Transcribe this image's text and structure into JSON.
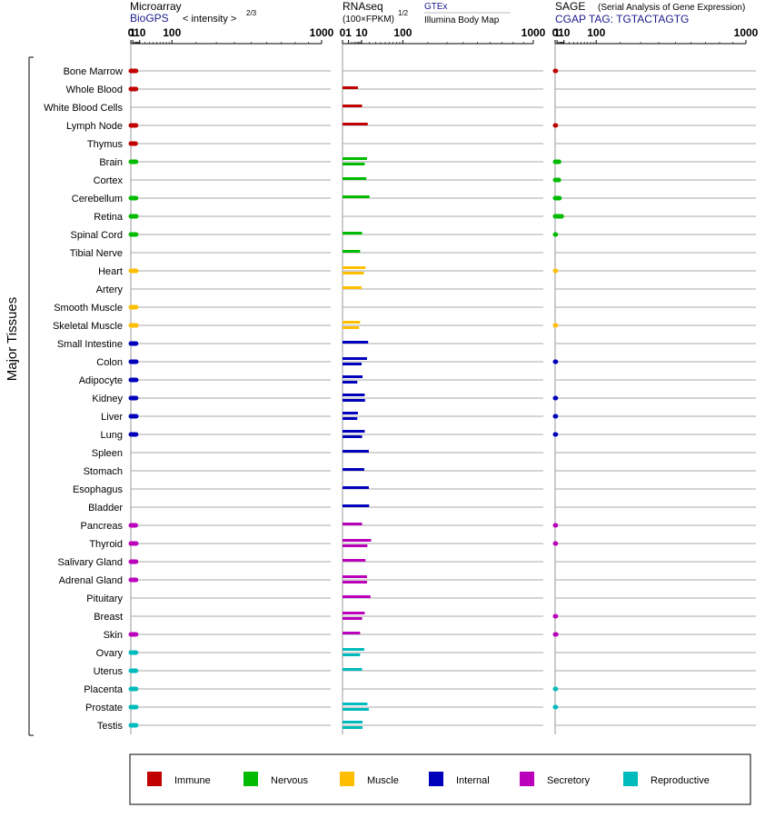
{
  "chart_data": {
    "type": "bar",
    "y_title": "Major Tissues",
    "panels": [
      {
        "id": "microarray",
        "title": "Microarray",
        "source": "BioGPS",
        "scale_label": "< intensity >",
        "scale_exponent": "2/3",
        "ticks": [
          "0",
          "1",
          "10",
          "100",
          "1000"
        ]
      },
      {
        "id": "rnaseq",
        "title": "RNAseq",
        "scale_label": "(100×FPKM)",
        "scale_exponent": "1/2",
        "source": "GTEx",
        "source2": "Illumina Body Map",
        "ticks": [
          "0",
          "1",
          "10",
          "100",
          "1000"
        ]
      },
      {
        "id": "sage",
        "title": "SAGE",
        "subtitle": "(Serial Analysis of Gene Expression)",
        "source": "CGAP TAG: TGTACTAGTG",
        "ticks": [
          "0",
          "1",
          "10",
          "100",
          "1000"
        ]
      }
    ],
    "tissues": [
      {
        "name": "Bone Marrow",
        "group": "Immune",
        "micro": 4.5,
        "rna": [],
        "sage": 0.05
      },
      {
        "name": "Whole Blood",
        "group": "Immune",
        "micro": 4.5,
        "rna": [
          6.5
        ],
        "sage": null
      },
      {
        "name": "White Blood Cells",
        "group": "Immune",
        "micro": null,
        "rna": [
          10.5
        ],
        "sage": null
      },
      {
        "name": "Lymph Node",
        "group": "Immune",
        "micro": 4.5,
        "rna": [
          17.5
        ],
        "sage": 0.05
      },
      {
        "name": "Thymus",
        "group": "Immune",
        "micro": 4.0,
        "rna": [],
        "sage": null
      },
      {
        "name": "Brain",
        "group": "Nervous",
        "micro": 4.5,
        "rna": [
          16.5,
          13.5
        ],
        "sage": 3.0
      },
      {
        "name": "Cortex",
        "group": "Nervous",
        "micro": null,
        "rna": [
          15.5
        ],
        "sage": 2.8
      },
      {
        "name": "Cerebellum",
        "group": "Nervous",
        "micro": 4.5,
        "rna": [
          20.0
        ],
        "sage": 3.5
      },
      {
        "name": "Retina",
        "group": "Nervous",
        "micro": 4.8,
        "rna": [],
        "sage": 6.5
      },
      {
        "name": "Spinal Cord",
        "group": "Nervous",
        "micro": 4.6,
        "rna": [
          10.5
        ],
        "sage": 0.05
      },
      {
        "name": "Tibial Nerve",
        "group": "Nervous",
        "micro": null,
        "rna": [
          8.5
        ],
        "sage": null
      },
      {
        "name": "Heart",
        "group": "Muscle",
        "micro": 4.8,
        "rna": [
          14.5,
          12.5
        ],
        "sage": 0.03
      },
      {
        "name": "Artery",
        "group": "Muscle",
        "micro": null,
        "rna": [
          10.0
        ],
        "sage": null
      },
      {
        "name": "Smooth Muscle",
        "group": "Muscle",
        "micro": 4.8,
        "rna": [],
        "sage": null
      },
      {
        "name": "Skeletal Muscle",
        "group": "Muscle",
        "micro": 5.0,
        "rna": [
          8.5,
          7.5
        ],
        "sage": 0.03
      },
      {
        "name": "Small Intestine",
        "group": "Internal",
        "micro": 4.6,
        "rna": [
          18.0
        ],
        "sage": null
      },
      {
        "name": "Colon",
        "group": "Internal",
        "micro": 4.8,
        "rna": [
          16.5,
          10.0
        ],
        "sage": 0.05
      },
      {
        "name": "Adipocyte",
        "group": "Internal",
        "micro": 4.8,
        "rna": [
          11.0,
          6.0
        ],
        "sage": null
      },
      {
        "name": "Kidney",
        "group": "Internal",
        "micro": 4.6,
        "rna": [
          13.5,
          14.0
        ],
        "sage": 0.05
      },
      {
        "name": "Liver",
        "group": "Internal",
        "micro": 4.8,
        "rna": [
          6.5,
          6.0
        ],
        "sage": 0.05
      },
      {
        "name": "Lung",
        "group": "Internal",
        "micro": 4.6,
        "rna": [
          13.5,
          10.5
        ],
        "sage": 0.05
      },
      {
        "name": "Spleen",
        "group": "Internal",
        "micro": null,
        "rna": [
          19.0
        ],
        "sage": null
      },
      {
        "name": "Stomach",
        "group": "Internal",
        "micro": null,
        "rna": [
          13.0
        ],
        "sage": null
      },
      {
        "name": "Esophagus",
        "group": "Internal",
        "micro": null,
        "rna": [
          19.0
        ],
        "sage": null
      },
      {
        "name": "Bladder",
        "group": "Internal",
        "micro": null,
        "rna": [
          19.5
        ],
        "sage": null
      },
      {
        "name": "Pancreas",
        "group": "Secretory",
        "micro": 4.2,
        "rna": [
          10.5
        ],
        "sage": 0.05
      },
      {
        "name": "Thyroid",
        "group": "Secretory",
        "micro": 4.8,
        "rna": [
          22.5,
          17.0
        ],
        "sage": 0.05
      },
      {
        "name": "Salivary Gland",
        "group": "Secretory",
        "micro": 4.5,
        "rna": [
          14.5
        ],
        "sage": null
      },
      {
        "name": "Adrenal Gland",
        "group": "Secretory",
        "micro": 4.5,
        "rna": [
          16.5,
          16.5
        ],
        "sage": null
      },
      {
        "name": "Pituitary",
        "group": "Secretory",
        "micro": null,
        "rna": [
          21.5
        ],
        "sage": null
      },
      {
        "name": "Breast",
        "group": "Secretory",
        "micro": null,
        "rna": [
          13.5,
          10.5
        ],
        "sage": 0.05
      },
      {
        "name": "Skin",
        "group": "Secretory",
        "micro": 4.6,
        "rna": [
          8.5
        ],
        "sage": 0.45
      },
      {
        "name": "Ovary",
        "group": "Reproductive",
        "micro": 4.5,
        "rna": [
          13.0,
          8.5
        ],
        "sage": null
      },
      {
        "name": "Uterus",
        "group": "Reproductive",
        "micro": 4.5,
        "rna": [
          10.5
        ],
        "sage": null
      },
      {
        "name": "Placenta",
        "group": "Reproductive",
        "micro": 4.6,
        "rna": [],
        "sage": 0.03
      },
      {
        "name": "Prostate",
        "group": "Reproductive",
        "micro": 4.8,
        "rna": [
          17.0,
          19.0
        ],
        "sage": 0.03
      },
      {
        "name": "Testis",
        "group": "Reproductive",
        "micro": 4.6,
        "rna": [
          11.0,
          11.0
        ],
        "sage": null
      }
    ],
    "legend": [
      {
        "name": "Immune",
        "color": "#c00000"
      },
      {
        "name": "Nervous",
        "color": "#00bb00"
      },
      {
        "name": "Muscle",
        "color": "#ffbf00"
      },
      {
        "name": "Internal",
        "color": "#0000bb"
      },
      {
        "name": "Secretory",
        "color": "#bb00bb"
      },
      {
        "name": "Reproductive",
        "color": "#00bbbb"
      }
    ]
  }
}
